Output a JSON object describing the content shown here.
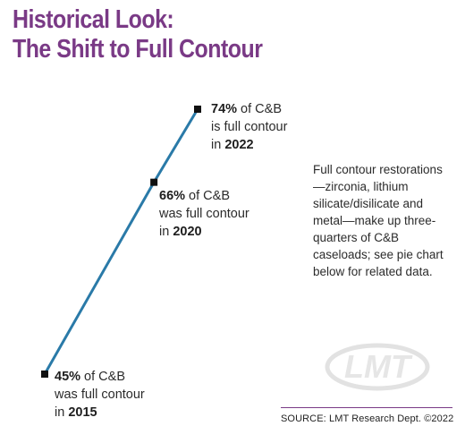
{
  "title_line1": "Historical Look:",
  "title_line2": "The Shift to Full Contour",
  "colors": {
    "title": "#7a3a86",
    "line": "#2a7aa8",
    "marker": "#111111"
  },
  "chart_data": {
    "type": "line",
    "title": "Historical Look: The Shift to Full Contour",
    "x": [
      2015,
      2020,
      2022
    ],
    "values": [
      45,
      66,
      74
    ],
    "annotations": [
      {
        "pct": "45%",
        "text": " of C&B",
        "line2": "was full contour",
        "line3_prefix": "in ",
        "year": "2015"
      },
      {
        "pct": "66%",
        "text": " of C&B",
        "line2": "was full contour",
        "line3_prefix": "in ",
        "year": "2020"
      },
      {
        "pct": "74%",
        "text": " of C&B",
        "line2": "is full contour",
        "line3_prefix": "in ",
        "year": "2022"
      }
    ]
  },
  "note": "Full contour restorations—zirconia, lithium silicate/disilicate and metal—make up three-quarters of C&B caseloads; see pie chart below for related data.",
  "watermark_text": "LMT",
  "source": "SOURCE: LMT Research Dept. ©2022"
}
